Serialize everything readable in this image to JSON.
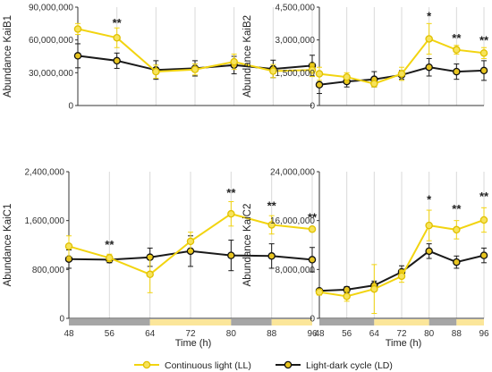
{
  "colors": {
    "ll": "#f2d410",
    "ld": "#1a1a1a",
    "dark_bar": "#a6a6a6",
    "light_bar": "#fbe69a",
    "grid": "#d9d9d9"
  },
  "x_label": "Time (h)",
  "legend": {
    "ll": "Continuous light (LL)",
    "ld": "Light-dark cycle (LD)",
    "position": "bottom-center"
  },
  "chart_data": [
    {
      "type": "line",
      "panel": "top-left",
      "ylabel": "Abundance KaiB1",
      "ylim": [
        0,
        90000000
      ],
      "yticks": [
        0,
        30000000,
        60000000,
        90000000
      ],
      "ytick_labels": [
        "0",
        "30,000,000",
        "60,000,000",
        "90,000,000"
      ],
      "x": [
        48,
        56,
        64,
        72,
        80,
        88,
        96
      ],
      "xlim": [
        48,
        96
      ],
      "xtick_labels": [],
      "light_dark_bar": false,
      "series": [
        {
          "name": "Continuous light (LL)",
          "key": "ll",
          "values": [
            70000000,
            62000000,
            31000000,
            33000000,
            40000000,
            31500000,
            32500000
          ],
          "err": [
            5000000,
            9000000,
            6000000,
            5000000,
            7000000,
            6000000,
            6000000
          ]
        },
        {
          "name": "Light-dark cycle (LD)",
          "key": "ld",
          "values": [
            45500000,
            41000000,
            32500000,
            34000000,
            37000000,
            33500000,
            36500000
          ],
          "err": [
            11000000,
            7000000,
            8500000,
            7000000,
            8000000,
            8000000,
            9500000
          ]
        }
      ],
      "annotations": [
        {
          "x": 56,
          "y": 72000000,
          "text": "**"
        }
      ]
    },
    {
      "type": "line",
      "panel": "top-right",
      "ylabel": "Abundance KaiB2",
      "ylim": [
        0,
        4500000
      ],
      "yticks": [
        0,
        1500000,
        3000000,
        4500000
      ],
      "ytick_labels": [
        "0",
        "1,500,000",
        "3,000,000",
        "4,500,000"
      ],
      "x": [
        48,
        56,
        64,
        72,
        80,
        88,
        96
      ],
      "xlim": [
        48,
        96
      ],
      "xtick_labels": [],
      "light_dark_bar": false,
      "series": [
        {
          "name": "Continuous light (LL)",
          "key": "ll",
          "values": [
            1450000,
            1300000,
            1000000,
            1450000,
            3050000,
            2550000,
            2400000
          ],
          "err": [
            300000,
            200000,
            150000,
            300000,
            700000,
            200000,
            250000
          ]
        },
        {
          "name": "Light-dark cycle (LD)",
          "key": "ld",
          "values": [
            950000,
            1100000,
            1200000,
            1400000,
            1750000,
            1550000,
            1600000
          ],
          "err": [
            400000,
            250000,
            350000,
            200000,
            400000,
            350000,
            450000
          ]
        }
      ],
      "annotations": [
        {
          "x": 80,
          "y": 3900000,
          "text": "*"
        },
        {
          "x": 88,
          "y": 2900000,
          "text": "**"
        },
        {
          "x": 96,
          "y": 2800000,
          "text": "**"
        }
      ]
    },
    {
      "type": "line",
      "panel": "bottom-left",
      "ylabel": "Abundance KaiC1",
      "ylim": [
        0,
        2400000
      ],
      "yticks": [
        0,
        800000,
        1600000,
        2400000
      ],
      "ytick_labels": [
        "0",
        "800,000",
        "1,600,000",
        "2,400,000"
      ],
      "x": [
        48,
        56,
        64,
        72,
        80,
        88,
        96
      ],
      "xlim": [
        48,
        96
      ],
      "xtick_labels": [
        "48",
        "56",
        "64",
        "72",
        "80",
        "88",
        "96"
      ],
      "light_dark_bar": true,
      "series": [
        {
          "name": "Continuous light (LL)",
          "key": "ll",
          "values": [
            1180000,
            990000,
            720000,
            1260000,
            1710000,
            1530000,
            1460000
          ],
          "err": [
            170000,
            60000,
            300000,
            150000,
            200000,
            150000,
            40000
          ]
        },
        {
          "name": "Light-dark cycle (LD)",
          "key": "ld",
          "values": [
            970000,
            960000,
            1000000,
            1100000,
            1030000,
            1020000,
            960000
          ],
          "err": [
            150000,
            50000,
            150000,
            250000,
            250000,
            200000,
            200000
          ]
        }
      ],
      "annotations": [
        {
          "x": 56,
          "y": 1140000,
          "text": "**"
        },
        {
          "x": 80,
          "y": 1990000,
          "text": "**"
        },
        {
          "x": 88,
          "y": 1780000,
          "text": "**"
        },
        {
          "x": 96,
          "y": 1590000,
          "text": "**"
        }
      ]
    },
    {
      "type": "line",
      "panel": "bottom-right",
      "ylabel": "Abundance KaiC2",
      "ylim": [
        0,
        24000000
      ],
      "yticks": [
        0,
        8000000,
        16000000,
        24000000
      ],
      "ytick_labels": [
        "0",
        "8,000,000",
        "16,000,000",
        "24,000,000"
      ],
      "x": [
        48,
        56,
        64,
        72,
        80,
        88,
        96
      ],
      "xlim": [
        48,
        96
      ],
      "xtick_labels": [
        "48",
        "56",
        "64",
        "72",
        "80",
        "88",
        "96"
      ],
      "light_dark_bar": true,
      "series": [
        {
          "name": "Continuous light (LL)",
          "key": "ll",
          "values": [
            4300000,
            3600000,
            4800000,
            6900000,
            15200000,
            14500000,
            16100000
          ],
          "err": [
            500000,
            800000,
            4000000,
            1000000,
            2500000,
            1500000,
            2000000
          ]
        },
        {
          "name": "Light-dark cycle (LD)",
          "key": "ld",
          "values": [
            4500000,
            4700000,
            5400000,
            7600000,
            11000000,
            9200000,
            10300000
          ],
          "err": [
            400000,
            500000,
            700000,
            1000000,
            1200000,
            1000000,
            1200000
          ]
        }
      ],
      "annotations": [
        {
          "x": 80,
          "y": 18800000,
          "text": "*"
        },
        {
          "x": 88,
          "y": 17300000,
          "text": "**"
        },
        {
          "x": 96,
          "y": 19300000,
          "text": "**"
        }
      ]
    }
  ]
}
